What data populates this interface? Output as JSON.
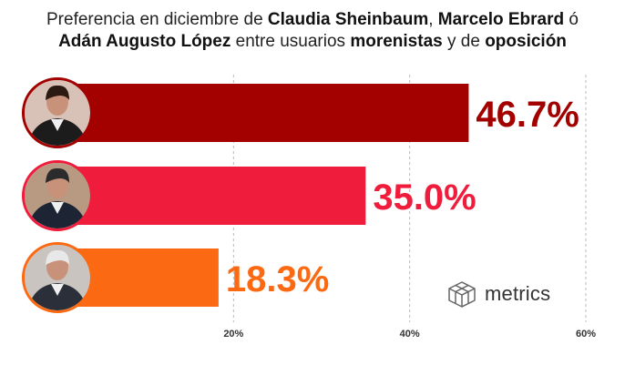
{
  "title": {
    "segments": [
      {
        "text": "Preferencia en diciembre de ",
        "bold": false
      },
      {
        "text": "Claudia Sheinbaum",
        "bold": true
      },
      {
        "text": ", ",
        "bold": false
      },
      {
        "text": "Marcelo Ebrard",
        "bold": true
      },
      {
        "text": " ó",
        "bold": false
      },
      {
        "text": "Adán Augusto López",
        "bold": true,
        "newline": true
      },
      {
        "text": " entre usuarios ",
        "bold": false
      },
      {
        "text": "morenistas",
        "bold": true
      },
      {
        "text": " y de ",
        "bold": false
      },
      {
        "text": "oposición",
        "bold": true
      }
    ]
  },
  "brand": {
    "name": "metrics",
    "icon": "cube-grid-icon"
  },
  "chart_data": {
    "type": "bar",
    "orientation": "horizontal",
    "categories": [
      "Claudia Sheinbaum",
      "Marcelo Ebrard",
      "Adán Augusto López"
    ],
    "values": [
      46.7,
      35.0,
      18.3
    ],
    "value_labels": [
      "46.7%",
      "35.0%",
      "18.3%"
    ],
    "colors": [
      "#a30000",
      "#ef1c3c",
      "#fb6a12"
    ],
    "xlim": [
      0,
      60
    ],
    "xticks": [
      20,
      40,
      60
    ],
    "xtick_labels": [
      "20%",
      "40%",
      "60%"
    ],
    "grid": true,
    "icons": [
      "sheinbaum-portrait-icon",
      "ebrard-portrait-icon",
      "lopez-portrait-icon"
    ]
  }
}
